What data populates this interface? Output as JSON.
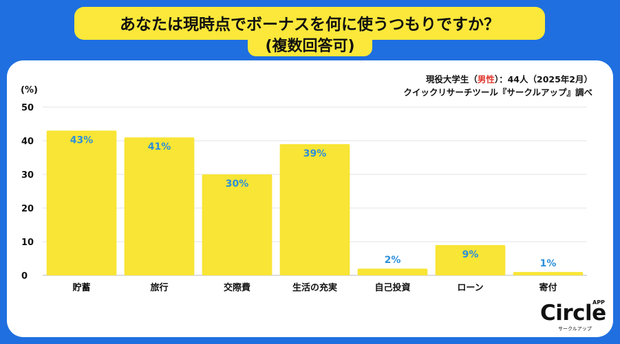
{
  "title": {
    "line1": "あなたは現時点でボーナスを何に使うつもりですか？",
    "line2": "(複数回答可)"
  },
  "source": {
    "line1_prefix": "現役大学生（",
    "line1_highlight": "男性",
    "line1_suffix": "）：44人（2025年2月）",
    "line2": "クイックリサーチツール『サークルアップ』調べ",
    "highlight_color": "#e0362c"
  },
  "chart_data": {
    "type": "bar",
    "title": "あなたは現時点でボーナスを何に使うつもりですか？(複数回答可)",
    "ylabel": "(%)",
    "xlabel": "",
    "ylim": [
      0,
      50
    ],
    "yticks": [
      0,
      10,
      20,
      30,
      40,
      50
    ],
    "grid": true,
    "categories": [
      "貯蓄",
      "旅行",
      "交際費",
      "生活の充実",
      "自己投資",
      "ローン",
      "寄付"
    ],
    "values": [
      43,
      41,
      30,
      39,
      2,
      9,
      1
    ],
    "value_labels": [
      "43%",
      "41%",
      "30%",
      "39%",
      "2%",
      "9%",
      "1%"
    ],
    "bar_color": "#f8e535",
    "label_color": "#2d8fd9"
  },
  "logo": {
    "name": "Circle",
    "badge": "APP",
    "subtitle": "サークルアップ",
    "icon": "circle-app-logo-icon"
  }
}
